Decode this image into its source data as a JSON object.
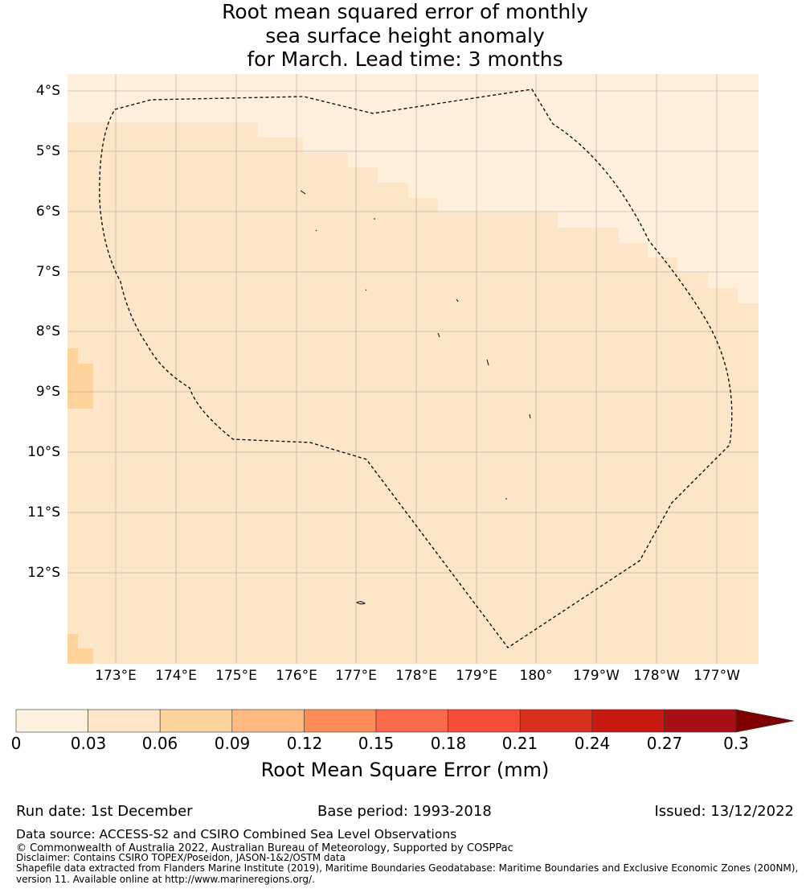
{
  "title": {
    "line1": "Root mean squared error of monthly",
    "line2": "sea surface height anomaly",
    "line3": "for March. Lead time: 3 months"
  },
  "map": {
    "lat_labels": [
      "4°S",
      "5°S",
      "6°S",
      "7°S",
      "8°S",
      "9°S",
      "10°S",
      "11°S",
      "12°S"
    ],
    "lon_labels": [
      "173°E",
      "174°E",
      "175°E",
      "176°E",
      "177°E",
      "178°E",
      "179°E",
      "180°",
      "179°W",
      "178°W",
      "177°W"
    ],
    "cell_colors": {
      "low": "#fef0dc",
      "mid": "#fde5c7",
      "high": "#fdd39b"
    },
    "boundary_style": "dashed black"
  },
  "colorbar": {
    "ticks": [
      "0",
      "0.03",
      "0.06",
      "0.09",
      "0.12",
      "0.15",
      "0.18",
      "0.21",
      "0.24",
      "0.27",
      "0.3"
    ],
    "colors": [
      "#fff1e0",
      "#fde6c8",
      "#fdd49d",
      "#fdb97f",
      "#fc8d59",
      "#fb6b4b",
      "#f44d38",
      "#d7301f",
      "#c81910",
      "#a50f15",
      "#7f0000"
    ],
    "label": "Root Mean Square Error (mm)"
  },
  "footer": {
    "run_date": "Run date: 1st December",
    "base_period": "Base period: 1993-2018",
    "issued": "Issued: 13/12/2022",
    "data_source": "Data source: ACCESS-S2 and CSIRO Combined Sea Level Observations",
    "copyright": "© Commonwealth of Australia 2022, Australian Bureau of Meteorology, Supported by COSPPac",
    "disclaimer": "Disclaimer: Contains CSIRO TOPEX/Poseidon, JASON-1&2/OSTM data",
    "shapefile": "Shapefile data extracted from Flanders Marine Institute (2019), Maritime Boundaries Geodatabase: Maritime Boundaries and Exclusive Economic Zones (200NM),",
    "version": "version 11. Available online at http://www.marineregions.org/."
  }
}
